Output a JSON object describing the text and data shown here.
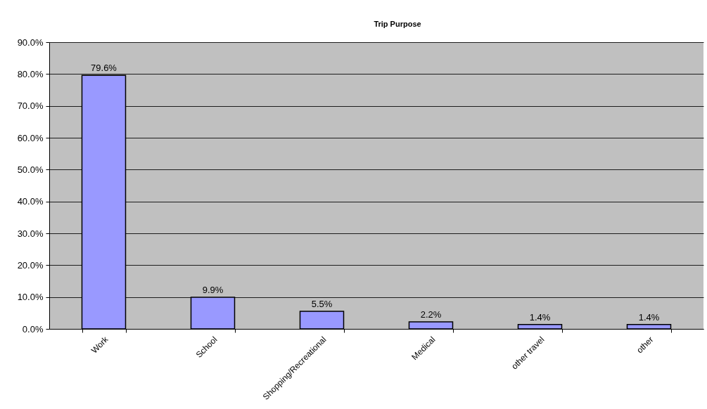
{
  "chart_data": {
    "type": "bar",
    "title": "Trip Purpose",
    "categories": [
      "Work",
      "School",
      "Shopping/Recreational",
      "Medical",
      "other travel",
      "other"
    ],
    "values": [
      79.6,
      9.9,
      5.5,
      2.2,
      1.4,
      1.4
    ],
    "value_labels": [
      "79.6%",
      "9.9%",
      "5.5%",
      "2.2%",
      "1.4%",
      "1.4%"
    ],
    "color": "#9999ff",
    "ylim": [
      0,
      90
    ],
    "yticks": [
      {
        "value": 0,
        "label": "0.0%"
      },
      {
        "value": 10,
        "label": "10.0%"
      },
      {
        "value": 20,
        "label": "20.0%"
      },
      {
        "value": 30,
        "label": "30.0%"
      },
      {
        "value": 40,
        "label": "40.0%"
      },
      {
        "value": 50,
        "label": "50.0%"
      },
      {
        "value": 60,
        "label": "60.0%"
      },
      {
        "value": 70,
        "label": "70.0%"
      },
      {
        "value": 80,
        "label": "80.0%"
      },
      {
        "value": 90,
        "label": "90.0%"
      }
    ],
    "grid": "y"
  }
}
